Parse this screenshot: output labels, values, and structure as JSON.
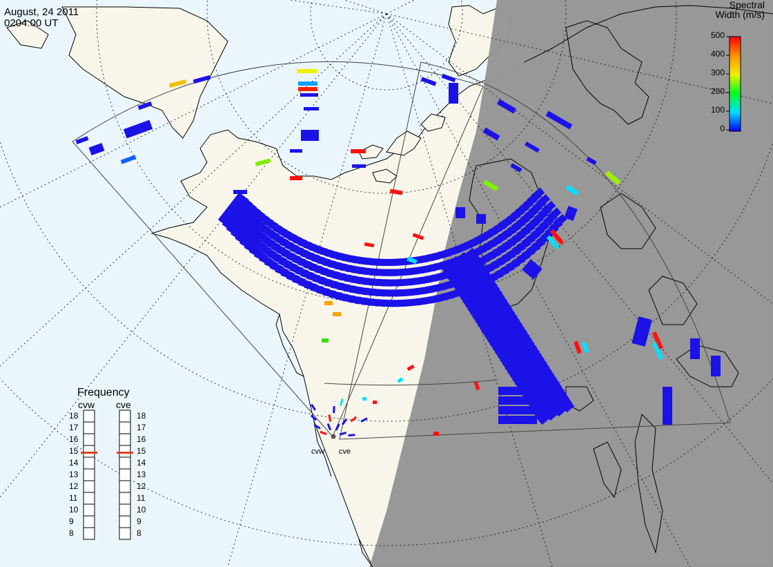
{
  "header": {
    "date": "August, 24 2011",
    "time": "0204:00 UT"
  },
  "colorbar": {
    "title_line1": "Spectral",
    "title_line2": "Width (m/s)",
    "ticks": [
      "500",
      "400",
      "300",
      "200",
      "100",
      "0"
    ]
  },
  "frequency_panel": {
    "title": "Frequency",
    "radar_left": "cvw",
    "radar_right": "cve",
    "scale": [
      "18",
      "17",
      "16",
      "15",
      "14",
      "13",
      "12",
      "11",
      "10",
      "9",
      "8"
    ],
    "cvw_freq_mhz": 15,
    "cve_freq_mhz": 15
  },
  "sites": {
    "west": "cvw",
    "east": "cve"
  },
  "colors": {
    "ocean": "#eaf6fc",
    "land": "#f8f6ea",
    "night": "#959595",
    "echo_low": "#1b12e8",
    "marker": "#e04020"
  }
}
